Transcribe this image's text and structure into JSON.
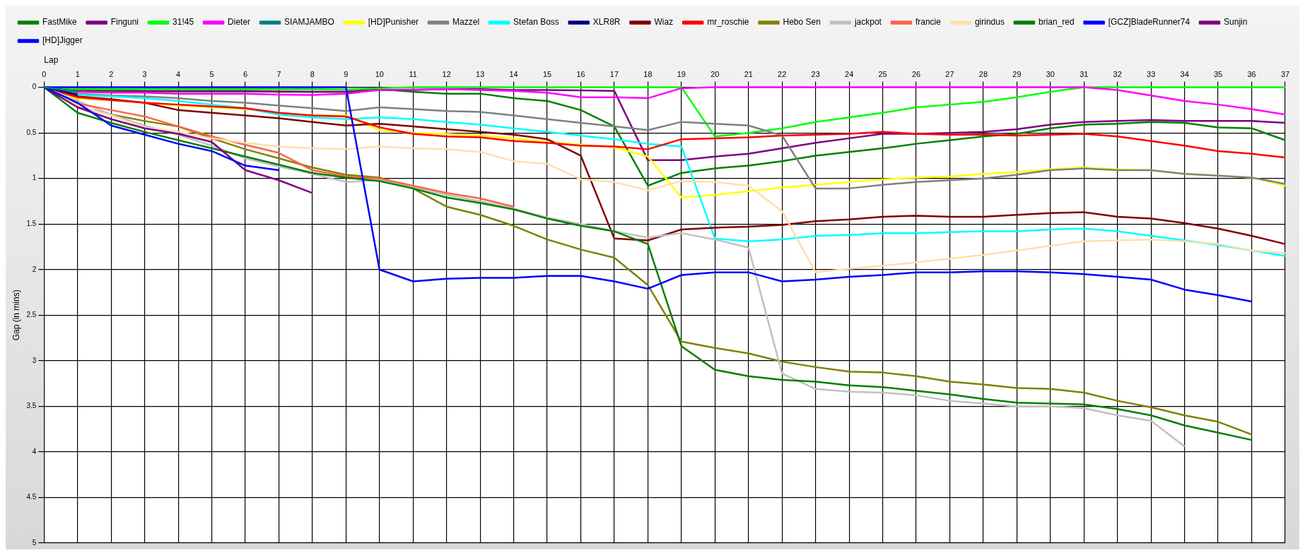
{
  "chart_data": {
    "type": "line",
    "xlabel": "Lap",
    "ylabel": "Gap (in mins)",
    "x": [
      0,
      1,
      2,
      3,
      4,
      5,
      6,
      7,
      8,
      9,
      10,
      11,
      12,
      13,
      14,
      15,
      16,
      17,
      18,
      19,
      20,
      21,
      22,
      23,
      24,
      25,
      26,
      27,
      28,
      29,
      30,
      31,
      32,
      33,
      34,
      35,
      36,
      37
    ],
    "xlim": [
      0,
      37
    ],
    "xticks": [
      0,
      1,
      2,
      3,
      4,
      5,
      6,
      7,
      8,
      9,
      10,
      11,
      12,
      13,
      14,
      15,
      16,
      17,
      18,
      19,
      20,
      21,
      22,
      23,
      24,
      25,
      26,
      27,
      28,
      29,
      30,
      31,
      32,
      33,
      34,
      35,
      36,
      37
    ],
    "ylim": [
      5,
      0
    ],
    "yticks": [
      0,
      0.5,
      1,
      1.5,
      2,
      2.5,
      3,
      3.5,
      4,
      4.5,
      5
    ],
    "grid": true,
    "legend": "top",
    "marker": "none",
    "line_style": "solid",
    "series": [
      {
        "name": "FastMike",
        "color": "#008000",
        "values": [
          0,
          0.04,
          0.045,
          0.045,
          0.045,
          0.045,
          0.045,
          0.045,
          0.05,
          0.05,
          0.02,
          0.05,
          0.07,
          0.07,
          0.12,
          0.15,
          0.25,
          0.43,
          1.08,
          0.94,
          0.89,
          0.86,
          0.81,
          0.75,
          0.71,
          0.67,
          0.62,
          0.58,
          0.54,
          0.51,
          0.45,
          0.41,
          0.4,
          0.38,
          0.39,
          0.44,
          0.45,
          0.58
        ]
      },
      {
        "name": "Finguni",
        "color": "#800080",
        "values": [
          0,
          0.03,
          0.03,
          0.04,
          0.04,
          0.04,
          0.04,
          0.05,
          0.05,
          0.05,
          0.03,
          0.03,
          0.02,
          0.02,
          0.03,
          0.03,
          0.035,
          0.04,
          0.8,
          0.8,
          0.76,
          0.73,
          0.67,
          0.61,
          0.56,
          0.51,
          0.51,
          0.5,
          0.49,
          0.46,
          0.41,
          0.38,
          0.37,
          0.36,
          0.37,
          0.37,
          0.37,
          0.39
        ]
      },
      {
        "name": "31!45",
        "color": "#00ff00",
        "values": [
          0,
          0.02,
          0.02,
          0.02,
          0.02,
          0.02,
          0.02,
          0.02,
          0.02,
          0.025,
          0.01,
          0,
          0,
          0,
          0,
          0,
          0,
          0,
          0,
          0,
          0.54,
          0.5,
          0.45,
          0.38,
          0.33,
          0.28,
          0.22,
          0.19,
          0.16,
          0.11,
          0.05,
          0,
          0,
          0,
          0,
          0,
          0,
          0
        ]
      },
      {
        "name": "Dieter",
        "color": "#ff00ff",
        "values": [
          0,
          0.05,
          0.06,
          0.06,
          0.07,
          0.07,
          0.07,
          0.08,
          0.085,
          0.07,
          0.03,
          0.025,
          0.02,
          0.03,
          0.04,
          0.06,
          0.11,
          0.11,
          0.12,
          0.01,
          0,
          0,
          0,
          0,
          0,
          0,
          0,
          0,
          0,
          0,
          0,
          0,
          0.03,
          0.09,
          0.15,
          0.19,
          0.24,
          0.3
        ]
      },
      {
        "name": "SIAMJAMBO",
        "color": "#008080",
        "values": [
          0,
          0.05,
          null,
          null,
          null,
          null,
          null,
          null,
          null,
          null,
          null,
          null,
          null,
          null,
          null,
          null,
          null,
          null,
          null,
          null,
          null,
          null,
          null,
          null,
          null,
          null,
          null,
          null,
          null,
          null,
          null,
          null,
          null,
          null,
          null,
          null,
          null,
          null
        ]
      },
      {
        "name": "[HD]Punisher",
        "color": "#ffff00",
        "values": [
          0,
          0.125,
          0.14,
          0.17,
          0.2,
          0.22,
          0.24,
          0.28,
          0.31,
          0.31,
          0.47,
          0.5,
          0.51,
          0.53,
          0.56,
          0.6,
          0.63,
          0.66,
          0.76,
          1.21,
          1.18,
          1.14,
          1.1,
          1.07,
          1.04,
          1.01,
          0.99,
          0.98,
          0.95,
          0.93,
          0.9,
          0.88,
          0.9,
          0.91,
          0.95,
          0.97,
          0.99,
          1.08
        ]
      },
      {
        "name": "Mazzel",
        "color": "#808080",
        "values": [
          0,
          0.07,
          0.09,
          0.1,
          0.12,
          0.15,
          0.17,
          0.2,
          0.23,
          0.26,
          0.22,
          0.24,
          0.26,
          0.27,
          0.31,
          0.35,
          0.39,
          0.43,
          0.47,
          0.38,
          0.4,
          0.42,
          0.53,
          1.11,
          1.11,
          1.07,
          1.04,
          1.02,
          1.0,
          0.96,
          0.91,
          0.89,
          0.91,
          0.91,
          0.95,
          0.97,
          0.99,
          1.06
        ]
      },
      {
        "name": "Stefan Boss",
        "color": "#00ffff",
        "values": [
          0,
          0.08,
          0.1,
          0.12,
          0.15,
          0.19,
          0.23,
          0.3,
          0.33,
          0.35,
          0.33,
          0.35,
          0.38,
          0.41,
          0.45,
          0.49,
          0.53,
          0.57,
          0.62,
          0.65,
          1.66,
          1.69,
          1.67,
          1.63,
          1.62,
          1.6,
          1.6,
          1.59,
          1.58,
          1.58,
          1.56,
          1.55,
          1.58,
          1.63,
          1.68,
          1.73,
          1.79,
          1.85
        ]
      },
      {
        "name": "XLR8R",
        "color": "#000080",
        "values": [
          0,
          0.08,
          null,
          null,
          null,
          null,
          null,
          null,
          null,
          null,
          null,
          null,
          null,
          null,
          null,
          null,
          null,
          null,
          null,
          null,
          null,
          null,
          null,
          null,
          null,
          null,
          null,
          null,
          null,
          null,
          null,
          null,
          null,
          null,
          null,
          null,
          null,
          null
        ]
      },
      {
        "name": "Wiaz",
        "color": "#800000",
        "values": [
          0,
          0.1,
          0.13,
          0.17,
          0.25,
          0.28,
          0.31,
          0.34,
          0.38,
          0.42,
          0.4,
          0.43,
          0.46,
          0.49,
          0.52,
          0.57,
          0.75,
          1.66,
          1.68,
          1.56,
          1.54,
          1.53,
          1.51,
          1.47,
          1.45,
          1.42,
          1.41,
          1.42,
          1.42,
          1.4,
          1.38,
          1.37,
          1.42,
          1.44,
          1.49,
          1.55,
          1.63,
          1.72
        ]
      },
      {
        "name": "mr_roschie",
        "color": "#ff0000",
        "values": [
          0,
          0.11,
          0.14,
          0.17,
          0.19,
          0.21,
          0.23,
          0.28,
          0.31,
          0.32,
          0.44,
          0.51,
          0.54,
          0.55,
          0.59,
          0.61,
          0.64,
          0.65,
          0.68,
          0.57,
          0.56,
          0.55,
          0.53,
          0.52,
          0.51,
          0.49,
          0.51,
          0.52,
          0.52,
          0.53,
          0.52,
          0.51,
          0.54,
          0.59,
          0.64,
          0.7,
          0.73,
          0.77
        ]
      },
      {
        "name": "Hebo Sen",
        "color": "#808000",
        "values": [
          0,
          0.21,
          0.3,
          0.37,
          0.43,
          0.56,
          0.68,
          0.78,
          0.88,
          0.96,
          0.99,
          1.11,
          1.31,
          1.4,
          1.52,
          1.67,
          1.78,
          1.87,
          2.17,
          2.79,
          2.86,
          2.92,
          3.01,
          3.07,
          3.12,
          3.13,
          3.17,
          3.23,
          3.26,
          3.3,
          3.31,
          3.35,
          3.44,
          3.51,
          3.6,
          3.67,
          3.81,
          null
        ]
      },
      {
        "name": "jackpot",
        "color": "#c0c0c0",
        "values": [
          0,
          0.15,
          0.3,
          0.42,
          0.52,
          0.64,
          0.78,
          0.87,
          0.95,
          1.04,
          1.02,
          1.1,
          1.18,
          1.25,
          1.33,
          1.43,
          1.5,
          1.58,
          1.65,
          1.6,
          1.67,
          1.76,
          3.14,
          3.31,
          3.34,
          3.35,
          3.38,
          3.44,
          3.47,
          3.5,
          3.5,
          3.52,
          3.6,
          3.66,
          3.94,
          null,
          null,
          null
        ]
      },
      {
        "name": "francie",
        "color": "#ff6347",
        "values": [
          0,
          0.18,
          0.25,
          0.32,
          0.43,
          0.54,
          0.63,
          0.72,
          0.91,
          0.98,
          1.0,
          1.08,
          1.16,
          1.22,
          1.31,
          null,
          null,
          null,
          null,
          null,
          null,
          null,
          null,
          null,
          null,
          null,
          null,
          null,
          null,
          null,
          null,
          null,
          null,
          null,
          null,
          null,
          null,
          null
        ]
      },
      {
        "name": "girindus",
        "color": "#ffdead",
        "values": [
          0,
          0.2,
          0.31,
          0.44,
          0.49,
          0.56,
          0.61,
          0.65,
          0.67,
          0.68,
          0.65,
          0.67,
          0.68,
          0.71,
          0.81,
          0.84,
          1.01,
          1.04,
          1.13,
          1.03,
          1.04,
          1.08,
          1.36,
          2.03,
          1.99,
          1.96,
          1.92,
          1.88,
          1.84,
          1.79,
          1.74,
          1.69,
          1.68,
          1.67,
          1.69,
          1.72,
          1.79,
          1.82
        ]
      },
      {
        "name": "brian_red",
        "color": "#008000",
        "values": [
          0,
          0.28,
          0.39,
          0.49,
          0.58,
          0.67,
          0.76,
          0.85,
          0.94,
          0.99,
          1.03,
          1.11,
          1.21,
          1.27,
          1.34,
          1.44,
          1.52,
          1.58,
          1.72,
          2.84,
          3.1,
          3.17,
          3.21,
          3.23,
          3.27,
          3.29,
          3.33,
          3.37,
          3.42,
          3.46,
          3.47,
          3.48,
          3.53,
          3.6,
          3.71,
          3.79,
          3.87,
          null
        ]
      },
      {
        "name": "[GCZ]BladeRunner74",
        "color": "#0000ff",
        "values": [
          0,
          0,
          0,
          0,
          0,
          0,
          0,
          0,
          0,
          0,
          2.0,
          2.13,
          2.1,
          2.09,
          2.09,
          2.07,
          2.07,
          2.13,
          2.21,
          2.06,
          2.03,
          2.03,
          2.13,
          2.11,
          2.08,
          2.06,
          2.03,
          2.03,
          2.02,
          2.02,
          2.03,
          2.05,
          2.08,
          2.11,
          2.22,
          2.28,
          2.35,
          null
        ]
      },
      {
        "name": "Sunjin",
        "color": "#800080",
        "values": [
          0,
          0.22,
          0.35,
          0.45,
          0.51,
          0.6,
          0.91,
          1.02,
          1.16,
          null,
          null,
          null,
          null,
          null,
          null,
          null,
          null,
          null,
          null,
          null,
          null,
          null,
          null,
          null,
          null,
          null,
          null,
          null,
          null,
          null,
          null,
          null,
          null,
          null,
          null,
          null,
          null,
          null
        ]
      },
      {
        "name": "[HD]Jigger",
        "color": "#0000ff",
        "values": [
          0,
          0.17,
          0.42,
          0.52,
          0.62,
          0.7,
          0.86,
          0.91,
          null,
          null,
          null,
          null,
          null,
          null,
          null,
          null,
          null,
          null,
          null,
          null,
          null,
          null,
          null,
          null,
          null,
          null,
          null,
          null,
          null,
          null,
          null,
          null,
          null,
          null,
          null,
          null,
          null,
          null
        ]
      }
    ]
  }
}
